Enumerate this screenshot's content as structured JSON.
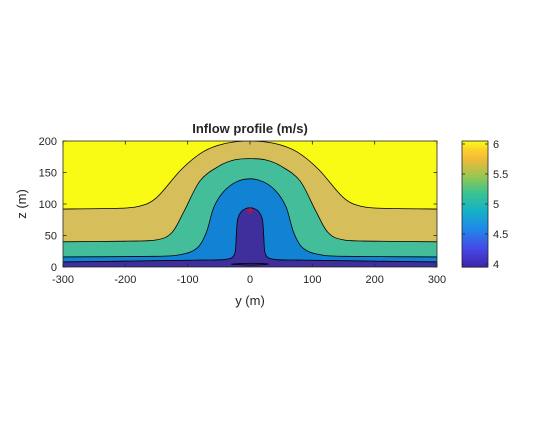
{
  "chart_data": {
    "type": "filled-contour",
    "title": "Inflow profile (m/s)",
    "xlabel": "y (m)",
    "ylabel": "z (m)",
    "xlim": [
      -300,
      300
    ],
    "ylim": [
      0,
      200
    ],
    "xticks": [
      -300,
      -200,
      -100,
      0,
      100,
      200,
      300
    ],
    "yticks": [
      0,
      50,
      100,
      150,
      200
    ],
    "grid": false,
    "colorbar": {
      "placement": "right",
      "clim": [
        3.95,
        6.05
      ],
      "ticks": [
        4,
        4.5,
        5,
        5.5,
        6
      ],
      "tick_labels": [
        "4",
        "4.5",
        "5",
        "5.5",
        "6"
      ]
    },
    "contour_levels": [
      {
        "level": 4.0,
        "color": "#3F2F9C"
      },
      {
        "level": 4.5,
        "color": "#1283D4"
      },
      {
        "level": 5.0,
        "color": "#44BE9A"
      },
      {
        "level": 5.5,
        "color": "#D6BE5A"
      },
      {
        "level": 6.0,
        "color": "#F9FB14"
      }
    ],
    "contour_boundaries": [
      {
        "lower": 4.0,
        "upper": 4.5,
        "points": [
          [
            -300,
            8
          ],
          [
            -150,
            10
          ],
          [
            -80,
            11
          ],
          [
            -40,
            12
          ],
          [
            -25,
            20
          ],
          [
            -22,
            50
          ],
          [
            -20,
            75
          ],
          [
            -14,
            88
          ],
          [
            -6,
            93
          ],
          [
            0,
            94
          ],
          [
            6,
            93
          ],
          [
            14,
            88
          ],
          [
            20,
            75
          ],
          [
            22,
            50
          ],
          [
            25,
            20
          ],
          [
            40,
            12
          ],
          [
            80,
            11
          ],
          [
            150,
            10
          ],
          [
            300,
            8
          ]
        ]
      },
      {
        "lower": 4.5,
        "upper": 5.0,
        "points": [
          [
            -300,
            16
          ],
          [
            -150,
            17
          ],
          [
            -110,
            20
          ],
          [
            -85,
            30
          ],
          [
            -70,
            55
          ],
          [
            -58,
            95
          ],
          [
            -42,
            120
          ],
          [
            -22,
            135
          ],
          [
            0,
            140
          ],
          [
            22,
            135
          ],
          [
            42,
            120
          ],
          [
            58,
            95
          ],
          [
            70,
            55
          ],
          [
            85,
            30
          ],
          [
            110,
            20
          ],
          [
            150,
            17
          ],
          [
            300,
            16
          ]
        ]
      },
      {
        "lower": 5.0,
        "upper": 5.5,
        "points": [
          [
            -300,
            40
          ],
          [
            -200,
            41
          ],
          [
            -150,
            43
          ],
          [
            -125,
            55
          ],
          [
            -105,
            90
          ],
          [
            -80,
            137
          ],
          [
            -50,
            160
          ],
          [
            -25,
            170
          ],
          [
            0,
            172
          ],
          [
            25,
            170
          ],
          [
            50,
            160
          ],
          [
            80,
            137
          ],
          [
            105,
            90
          ],
          [
            125,
            55
          ],
          [
            150,
            43
          ],
          [
            200,
            41
          ],
          [
            300,
            40
          ]
        ]
      },
      {
        "lower": 5.5,
        "upper": 6.0,
        "points": [
          [
            -300,
            92
          ],
          [
            -220,
            93
          ],
          [
            -180,
            96
          ],
          [
            -150,
            110
          ],
          [
            -110,
            155
          ],
          [
            -75,
            183
          ],
          [
            -40,
            196
          ],
          [
            0,
            200
          ],
          [
            40,
            196
          ],
          [
            75,
            183
          ],
          [
            110,
            155
          ],
          [
            150,
            110
          ],
          [
            180,
            96
          ],
          [
            220,
            93
          ],
          [
            300,
            92
          ]
        ]
      }
    ],
    "bottom_closed_contour": {
      "level": 4.0,
      "points": [
        [
          -30,
          4.5
        ],
        [
          0,
          6
        ],
        [
          30,
          4.5
        ],
        [
          0,
          3
        ],
        [
          -30,
          4.5
        ]
      ]
    },
    "marker": {
      "y": 0,
      "z": 90,
      "symbol": "+",
      "color": "#FF0000"
    }
  }
}
